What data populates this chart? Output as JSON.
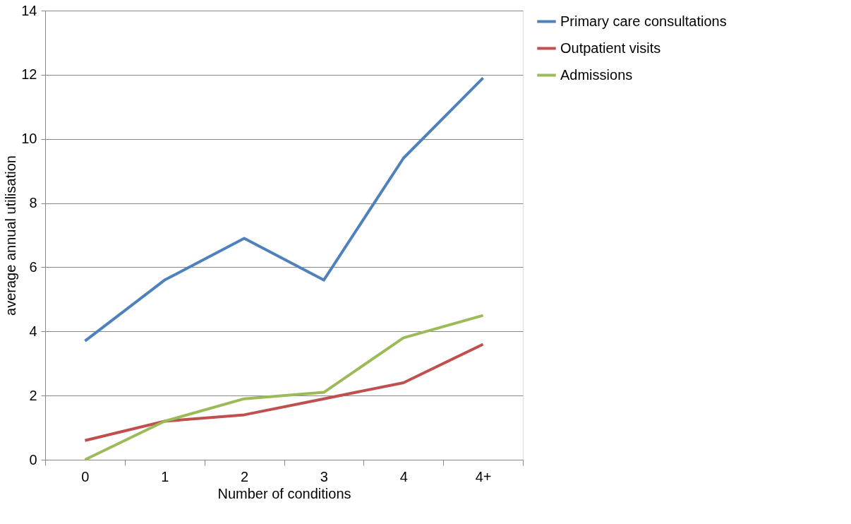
{
  "chart_data": {
    "type": "line",
    "xlabel": "Number of conditions",
    "ylabel": "average annual utilisation",
    "categories": [
      "0",
      "1",
      "2",
      "3",
      "4",
      "4+"
    ],
    "series": [
      {
        "name": "Primary care consultations",
        "color": "#4f81bd",
        "values": [
          3.7,
          5.6,
          6.9,
          5.6,
          9.4,
          11.9
        ]
      },
      {
        "name": "Outpatient visits",
        "color": "#c0504d",
        "values": [
          0.6,
          1.2,
          1.4,
          1.9,
          2.4,
          3.6
        ]
      },
      {
        "name": "Admissions",
        "color": "#9bbb59",
        "values": [
          0.0,
          1.2,
          1.9,
          2.1,
          3.8,
          4.5
        ]
      }
    ],
    "ylim": [
      0,
      14
    ],
    "yticks": [
      0,
      2,
      4,
      6,
      8,
      10,
      12,
      14
    ],
    "grid": "y",
    "legend": "right",
    "marker": "none",
    "line_style": "solid"
  }
}
